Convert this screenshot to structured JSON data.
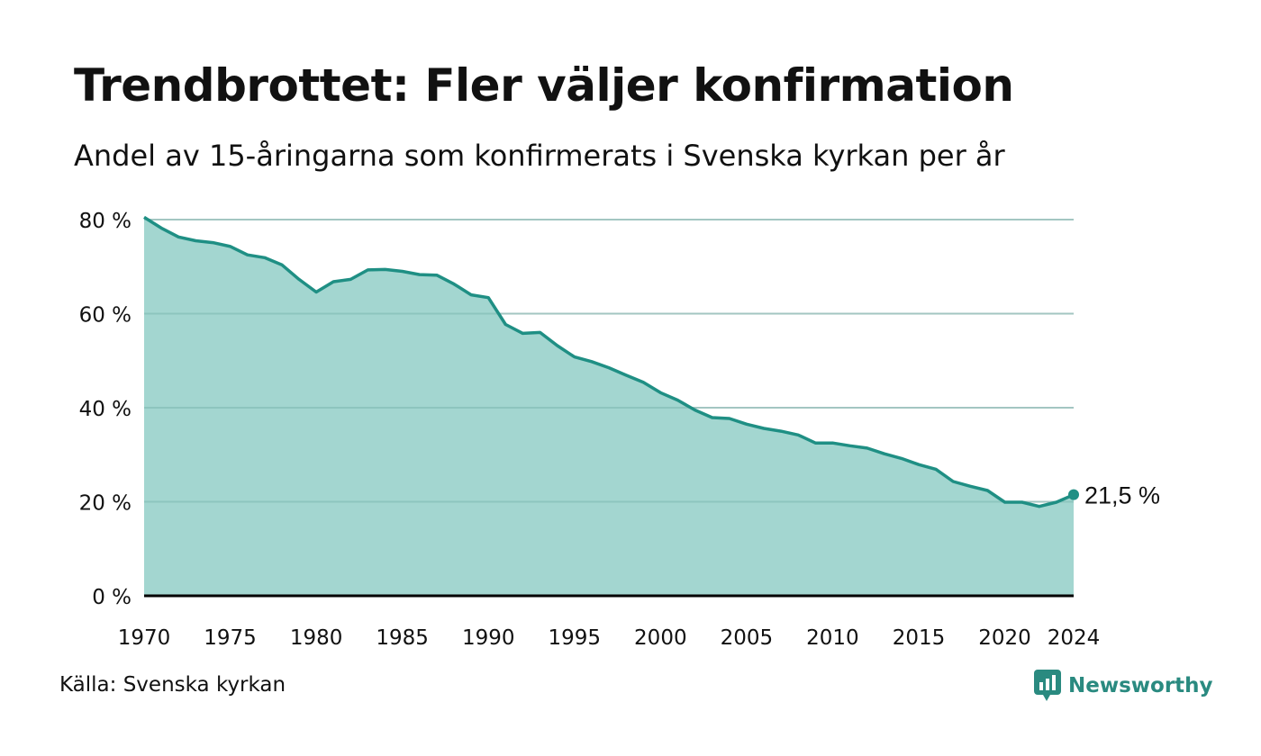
{
  "title": "Trendbrottet: Fler väljer konfirmation",
  "subtitle": "Andel av 15-åringarna som konfirmerats i Svenska kyrkan per år",
  "source": "Källa: Svenska kyrkan",
  "brand": "Newsworthy",
  "colors": {
    "line": "#1f8f84",
    "area": "#a3d6d0",
    "grid": "#d9d9d9",
    "axis": "#000000",
    "brand": "#2a8a80"
  },
  "chart_data": {
    "type": "area",
    "x": [
      1970,
      1971,
      1972,
      1973,
      1974,
      1975,
      1976,
      1977,
      1978,
      1979,
      1980,
      1981,
      1982,
      1983,
      1984,
      1985,
      1986,
      1987,
      1988,
      1989,
      1990,
      1991,
      1992,
      1993,
      1994,
      1995,
      1996,
      1997,
      1998,
      1999,
      2000,
      2001,
      2002,
      2003,
      2004,
      2005,
      2006,
      2007,
      2008,
      2009,
      2010,
      2011,
      2012,
      2013,
      2014,
      2015,
      2016,
      2017,
      2018,
      2019,
      2020,
      2021,
      2022,
      2023,
      2024
    ],
    "series": [
      {
        "values": [
          80.5,
          78.2,
          76.3,
          75.5,
          75.1,
          74.3,
          72.5,
          71.9,
          70.4,
          67.3,
          64.6,
          66.8,
          67.3,
          69.3,
          69.4,
          69.0,
          68.3,
          68.2,
          66.3,
          64.0,
          63.4,
          57.7,
          55.8,
          56.0,
          53.2,
          50.8,
          49.8,
          48.5,
          46.9,
          45.4,
          43.2,
          41.6,
          39.5,
          37.9,
          37.7,
          36.5,
          35.6,
          35.0,
          34.2,
          32.5,
          32.5,
          31.9,
          31.4,
          30.2,
          29.2,
          27.9,
          26.9,
          24.3,
          23.3,
          22.4,
          19.9,
          19.9,
          19.0,
          19.9,
          21.5
        ]
      }
    ],
    "ylim": [
      0,
      80
    ],
    "xlim": [
      1970,
      2024
    ],
    "yticks": [
      {
        "value": 0,
        "label": "0 %"
      },
      {
        "value": 20,
        "label": "20 %"
      },
      {
        "value": 40,
        "label": "40 %"
      },
      {
        "value": 60,
        "label": "60 %"
      },
      {
        "value": 80,
        "label": "80 %"
      }
    ],
    "xticks": [
      {
        "value": 1970,
        "label": "1970"
      },
      {
        "value": 1975,
        "label": "1975"
      },
      {
        "value": 1980,
        "label": "1980"
      },
      {
        "value": 1985,
        "label": "1985"
      },
      {
        "value": 1990,
        "label": "1990"
      },
      {
        "value": 1995,
        "label": "1995"
      },
      {
        "value": 2000,
        "label": "2000"
      },
      {
        "value": 2005,
        "label": "2005"
      },
      {
        "value": 2010,
        "label": "2010"
      },
      {
        "value": 2015,
        "label": "2015"
      },
      {
        "value": 2020,
        "label": "2020"
      },
      {
        "value": 2024,
        "label": "2024"
      }
    ],
    "grid": true,
    "legend": "none",
    "annotation": {
      "x": 2024,
      "y": 21.5,
      "label": "21,5  %"
    }
  }
}
